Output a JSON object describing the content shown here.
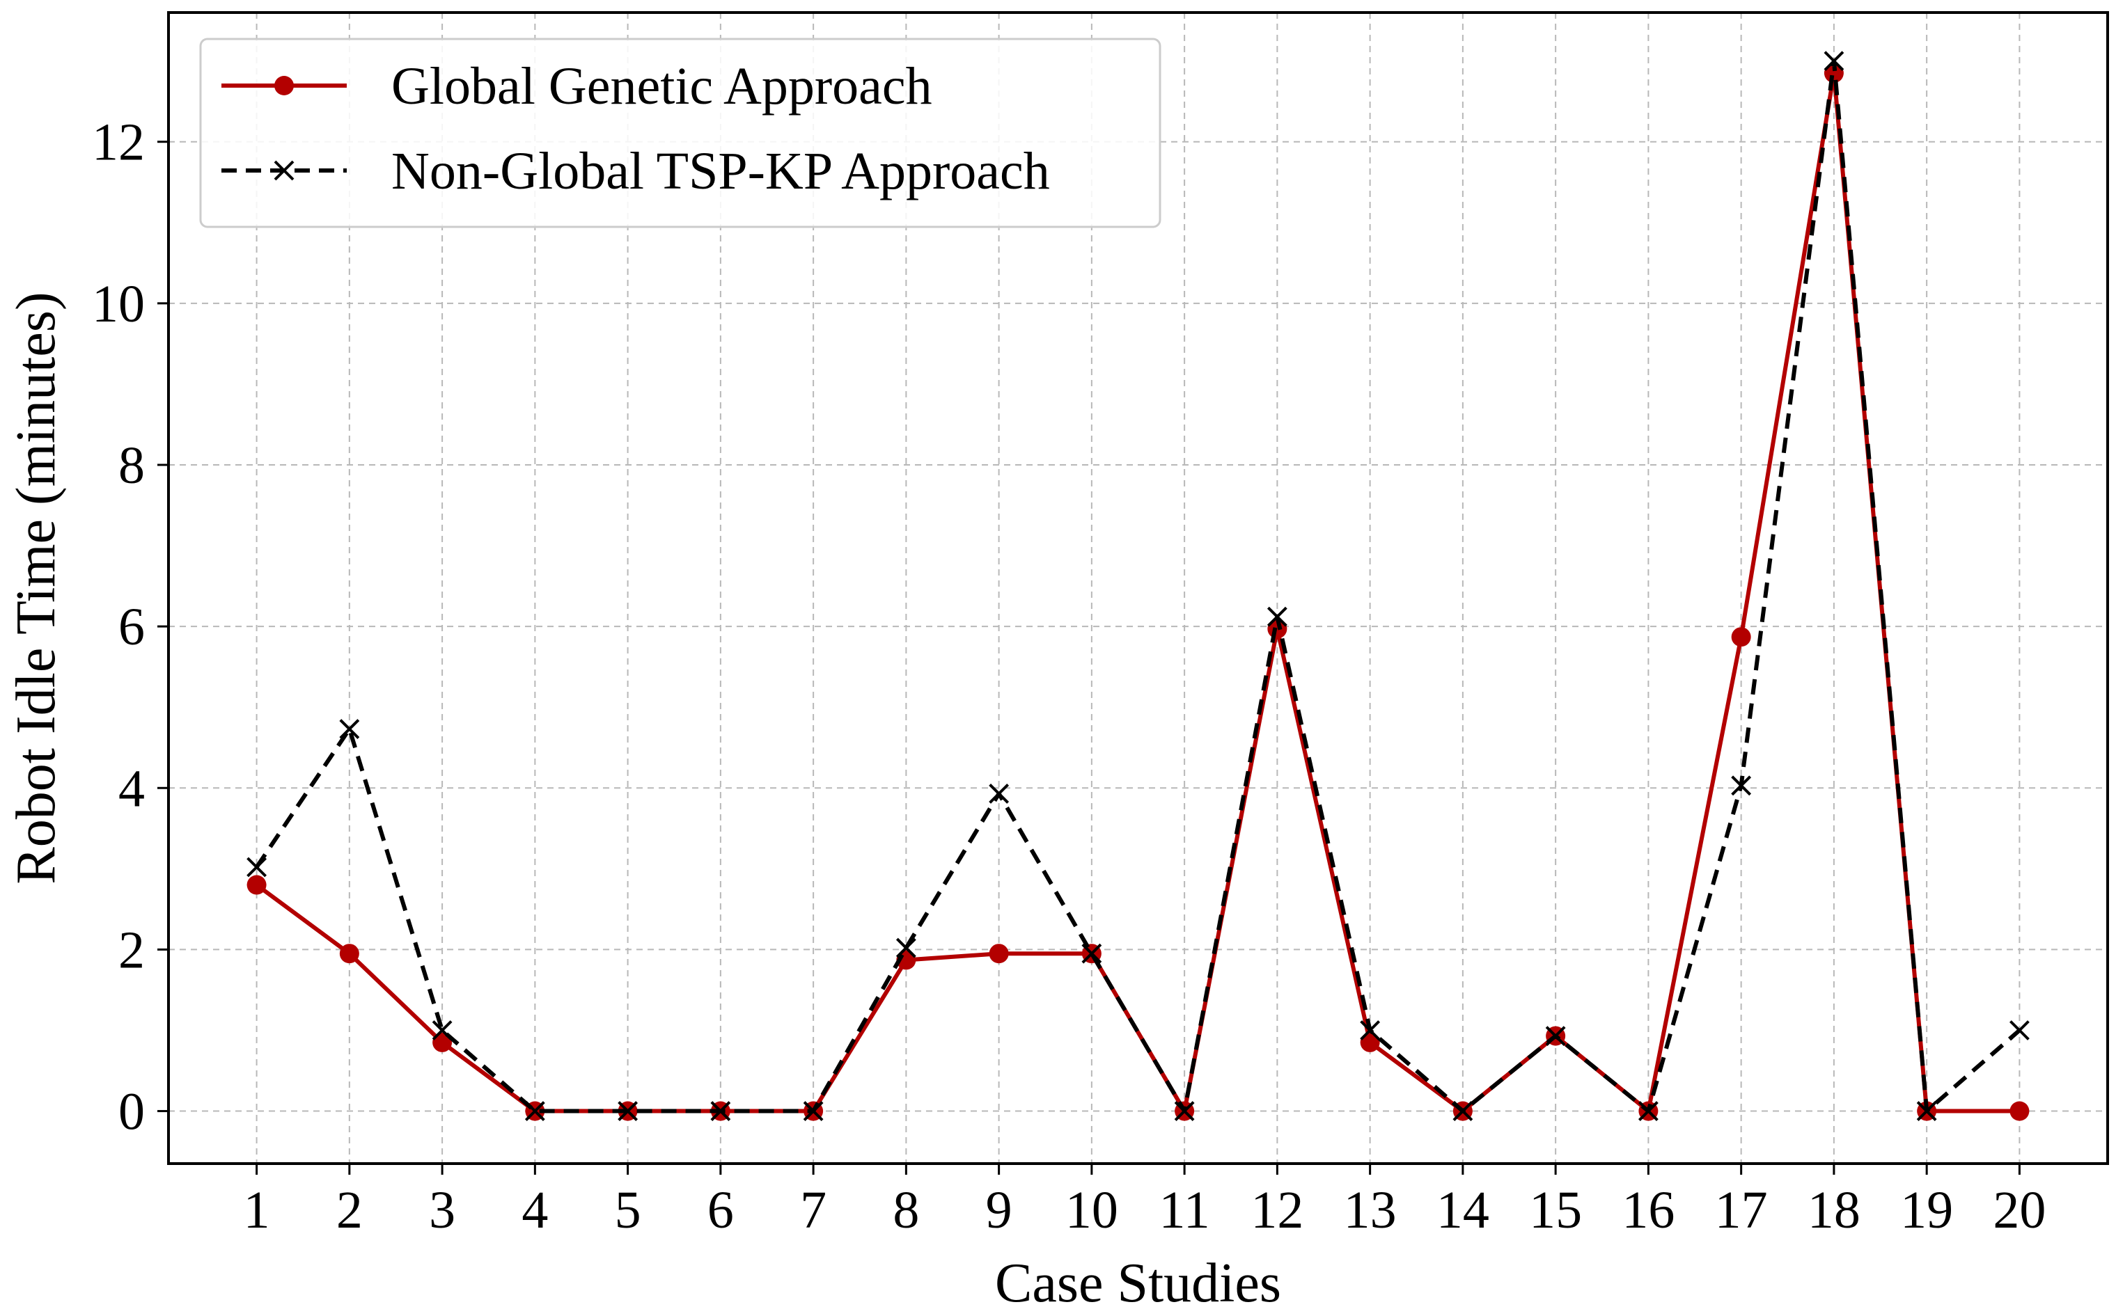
{
  "chart_data": {
    "type": "line",
    "title": "",
    "xlabel": "Case Studies",
    "ylabel": "Robot Idle Time (minutes)",
    "categories": [
      "1",
      "2",
      "3",
      "4",
      "5",
      "6",
      "7",
      "8",
      "9",
      "10",
      "11",
      "12",
      "13",
      "14",
      "15",
      "16",
      "17",
      "18",
      "19",
      "20"
    ],
    "xlim": [
      0.05,
      20.95
    ],
    "ylim": [
      -0.65,
      13.6
    ],
    "yticks": [
      0,
      2,
      4,
      6,
      8,
      10,
      12
    ],
    "grid": true,
    "legend_position": "top-left",
    "series": [
      {
        "name": "Global Genetic Approach",
        "color": "#b30000",
        "line_style": "solid",
        "marker": "circle",
        "values": [
          2.8,
          1.95,
          0.85,
          0,
          0,
          0,
          0,
          1.87,
          1.95,
          1.95,
          0,
          5.97,
          0.85,
          0,
          0.93,
          0,
          5.87,
          12.85,
          0,
          0
        ]
      },
      {
        "name": "Non-Global TSP-KP Approach",
        "color": "#000000",
        "line_style": "dashed",
        "marker": "x",
        "values": [
          3.02,
          4.73,
          1.0,
          0,
          0,
          0,
          0,
          2.02,
          3.93,
          1.95,
          0,
          6.12,
          1.0,
          0,
          0.93,
          0,
          4.03,
          13.0,
          0,
          1.0
        ]
      }
    ]
  }
}
